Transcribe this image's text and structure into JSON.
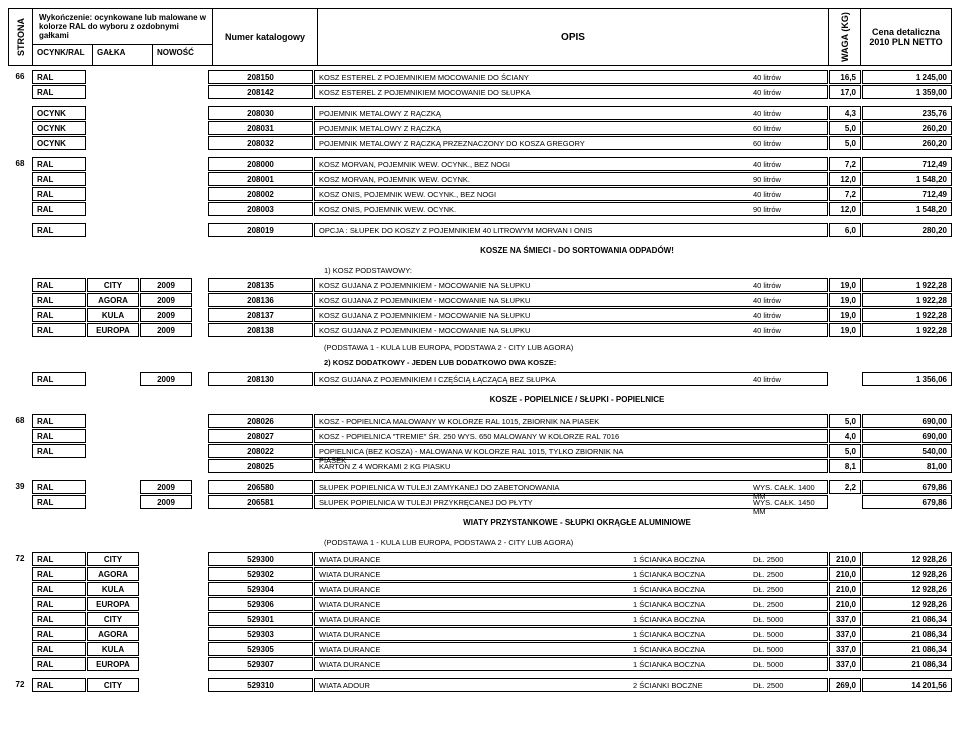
{
  "header": {
    "strona": "STRONA",
    "finish": "Wykończenie: ocynkowane lub malowane w kolorze RAL do wyboru z ozdobnymi gałkami",
    "ocynkral": "OCYNK/RAL",
    "galka": "GAŁKA",
    "nowosc": "NOWOŚĆ",
    "katalog": "Numer katalogowy",
    "opis": "OPIS",
    "waga": "WAGA (KG)",
    "cena1": "Cena detaliczna",
    "cena2": "2010 PLN NETTO"
  },
  "sections": {
    "s1": "KOSZE NA ŚMIECI - DO SORTOWANIA ODPADÓW!",
    "s2": "KOSZE - POPIELNICE / SŁUPKI - POPIELNICE",
    "s3": "WIATY PRZYSTANKOWE - SŁUPKI OKRĄGŁE ALUMINIOWE",
    "sub1": "1) KOSZ PODSTAWOWY:",
    "sub2": "(PODSTAWA 1 - KULA LUB EUROPA, PODSTAWA 2 - CITY LUB AGORA)",
    "sub3": "2) KOSZ DODATKOWY - JEDEN LUB DODATKOWO DWA KOSZE:",
    "sub4": "(PODSTAWA 1 - KULA LUB EUROPA, PODSTAWA 2 - CITY LUB AGORA)"
  },
  "r": [
    {
      "s": "66",
      "a": "RAL",
      "k": "208150",
      "o": "KOSZ ESTEREL Z POJEMNIKIEM MOCOWANIE DO ŚCIANY",
      "o2": "",
      "o3": "40 litrów",
      "w": "16,5",
      "c": "1 245,00"
    },
    {
      "a": "RAL",
      "k": "208142",
      "o": "KOSZ ESTEREL Z POJEMNIKIEM MOCOWANIE DO SŁUPKA",
      "o2": "",
      "o3": "40 litrów",
      "w": "17,0",
      "c": "1 359,00"
    },
    {
      "gap": true,
      "a": "OCYNK",
      "k": "208030",
      "o": "POJEMNIK METALOWY Z RĄCZKĄ",
      "o2": "",
      "o3": "40 litrów",
      "w": "4,3",
      "c": "235,76"
    },
    {
      "a": "OCYNK",
      "k": "208031",
      "o": "POJEMNIK METALOWY Z RĄCZKĄ",
      "o2": "",
      "o3": "60 litrów",
      "w": "5,0",
      "c": "260,20"
    },
    {
      "a": "OCYNK",
      "k": "208032",
      "o": "POJEMNIK METALOWY Z RĄCZKĄ PRZEZNACZONY DO KOSZA GREGORY",
      "o2": "",
      "o3": "60 litrów",
      "w": "5,0",
      "c": "260,20"
    },
    {
      "gap": true,
      "s": "68",
      "a": "RAL",
      "k": "208000",
      "o": "KOSZ MORVAN, POJEMNIK WEW. OCYNK., BEZ NOGI",
      "o2": "",
      "o3": "40 litrów",
      "w": "7,2",
      "c": "712,49"
    },
    {
      "a": "RAL",
      "k": "208001",
      "o": "KOSZ MORVAN, POJEMNIK WEW. OCYNK.",
      "o2": "",
      "o3": "90 litrów",
      "w": "12,0",
      "c": "1 548,20"
    },
    {
      "a": "RAL",
      "k": "208002",
      "o": "KOSZ ONIS, POJEMNIK WEW. OCYNK., BEZ NOGI",
      "o2": "",
      "o3": "40 litrów",
      "w": "7,2",
      "c": "712,49"
    },
    {
      "a": "RAL",
      "k": "208003",
      "o": "KOSZ ONIS, POJEMNIK WEW. OCYNK.",
      "o2": "",
      "o3": "90 litrów",
      "w": "12,0",
      "c": "1 548,20"
    },
    {
      "gap": true,
      "a": "RAL",
      "k": "208019",
      "o": "OPCJA : SŁUPEK DO KOSZY Z POJEMNIKIEM 40 LITROWYM MORVAN I ONIS",
      "o2": "",
      "o3": "",
      "w": "6,0",
      "c": "280,20"
    }
  ],
  "r2": [
    {
      "a": "RAL",
      "b": "CITY",
      "cc": "2009",
      "k": "208135",
      "o": "KOSZ GUJANA Z POJEMNIKIEM - MOCOWANIE NA SŁUPKU",
      "o2": "",
      "o3": "40 litrów",
      "w": "19,0",
      "c": "1 922,28"
    },
    {
      "a": "RAL",
      "b": "AGORA",
      "cc": "2009",
      "k": "208136",
      "o": "KOSZ GUJANA Z POJEMNIKIEM - MOCOWANIE NA SŁUPKU",
      "o2": "",
      "o3": "40 litrów",
      "w": "19,0",
      "c": "1 922,28"
    },
    {
      "a": "RAL",
      "b": "KULA",
      "cc": "2009",
      "k": "208137",
      "o": "KOSZ GUJANA Z POJEMNIKIEM - MOCOWANIE NA SŁUPKU",
      "o2": "",
      "o3": "40 litrów",
      "w": "19,0",
      "c": "1 922,28"
    },
    {
      "a": "RAL",
      "b": "EUROPA",
      "cc": "2009",
      "k": "208138",
      "o": "KOSZ GUJANA Z POJEMNIKIEM - MOCOWANIE NA SŁUPKU",
      "o2": "",
      "o3": "40 litrów",
      "w": "19,0",
      "c": "1 922,28"
    }
  ],
  "r3": [
    {
      "a": "RAL",
      "cc": "2009",
      "k": "208130",
      "o": "KOSZ GUJANA Z POJEMNIKIEM I CZĘŚCIĄ ŁĄCZĄCĄ BEZ SŁUPKA",
      "o2": "",
      "o3": "40 litrów",
      "c": "1 356,06"
    }
  ],
  "r4": [
    {
      "s": "68",
      "a": "RAL",
      "k": "208026",
      "o": "KOSZ - POPIELNICA MALOWANY W KOLORZE RAL 1015, ZBIORNIK NA PIASEK",
      "w": "5,0",
      "c": "690,00"
    },
    {
      "a": "RAL",
      "k": "208027",
      "o": "KOSZ - POPIELNICA \"TREMIE\" ŚR. 250 WYS. 650 MALOWANY W KOLORZE RAL 7016",
      "w": "4,0",
      "c": "690,00"
    },
    {
      "a": "RAL",
      "k": "208022",
      "o": "POPIELNICA (BEZ KOSZA) - MALOWANA W KOLORZE RAL 1015, TYLKO ZBIORNIK NA PIASEK",
      "w": "5,0",
      "c": "540,00"
    },
    {
      "k": "208025",
      "o": "KARTON Z 4 WORKAMI 2 KG PIASKU",
      "w": "8,1",
      "c": "81,00"
    }
  ],
  "r5": [
    {
      "gap": true,
      "s": "39",
      "a": "RAL",
      "cc": "2009",
      "k": "206580",
      "o": "SŁUPEK POPIELNICA W TULEJI ZAMYKANEJ DO ZABETONOWANIA",
      "o2": "",
      "o3": "WYS. CAŁK. 1400 MM",
      "w": "2,2",
      "c": "679,86"
    },
    {
      "a": "RAL",
      "cc": "2009",
      "k": "206581",
      "o": "SŁUPEK POPIELNICA W TULEJI PRZYKRĘCANEJ DO PŁYTY",
      "o2": "",
      "o3": "WYS. CAŁK. 1450 MM",
      "c": "679,86"
    }
  ],
  "r6": [
    {
      "s": "72",
      "a": "RAL",
      "b": "CITY",
      "k": "529300",
      "o": "WIATA DURANCE",
      "o2": "1 ŚCIANKA BOCZNA",
      "o3": "DŁ. 2500",
      "w": "210,0",
      "c": "12 928,26"
    },
    {
      "a": "RAL",
      "b": "AGORA",
      "k": "529302",
      "o": "WIATA DURANCE",
      "o2": "1 ŚCIANKA BOCZNA",
      "o3": "DŁ. 2500",
      "w": "210,0",
      "c": "12 928,26"
    },
    {
      "a": "RAL",
      "b": "KULA",
      "k": "529304",
      "o": "WIATA DURANCE",
      "o2": "1 ŚCIANKA BOCZNA",
      "o3": "DŁ. 2500",
      "w": "210,0",
      "c": "12 928,26"
    },
    {
      "a": "RAL",
      "b": "EUROPA",
      "k": "529306",
      "o": "WIATA DURANCE",
      "o2": "1 ŚCIANKA BOCZNA",
      "o3": "DŁ. 2500",
      "w": "210,0",
      "c": "12 928,26"
    },
    {
      "a": "RAL",
      "b": "CITY",
      "k": "529301",
      "o": "WIATA DURANCE",
      "o2": "1 ŚCIANKA BOCZNA",
      "o3": "DŁ. 5000",
      "w": "337,0",
      "c": "21 086,34"
    },
    {
      "a": "RAL",
      "b": "AGORA",
      "k": "529303",
      "o": "WIATA DURANCE",
      "o2": "1 ŚCIANKA BOCZNA",
      "o3": "DŁ. 5000",
      "w": "337,0",
      "c": "21 086,34"
    },
    {
      "a": "RAL",
      "b": "KULA",
      "k": "529305",
      "o": "WIATA DURANCE",
      "o2": "1 ŚCIANKA BOCZNA",
      "o3": "DŁ. 5000",
      "w": "337,0",
      "c": "21 086,34"
    },
    {
      "a": "RAL",
      "b": "EUROPA",
      "k": "529307",
      "o": "WIATA DURANCE",
      "o2": "1 ŚCIANKA BOCZNA",
      "o3": "DŁ. 5000",
      "w": "337,0",
      "c": "21 086,34"
    },
    {
      "gap": true,
      "s": "72",
      "a": "RAL",
      "b": "CITY",
      "k": "529310",
      "o": "WIATA ADOUR",
      "o2": "2 ŚCIANKI BOCZNE",
      "o3": "DŁ. 2500",
      "w": "269,0",
      "c": "14 201,56"
    }
  ]
}
